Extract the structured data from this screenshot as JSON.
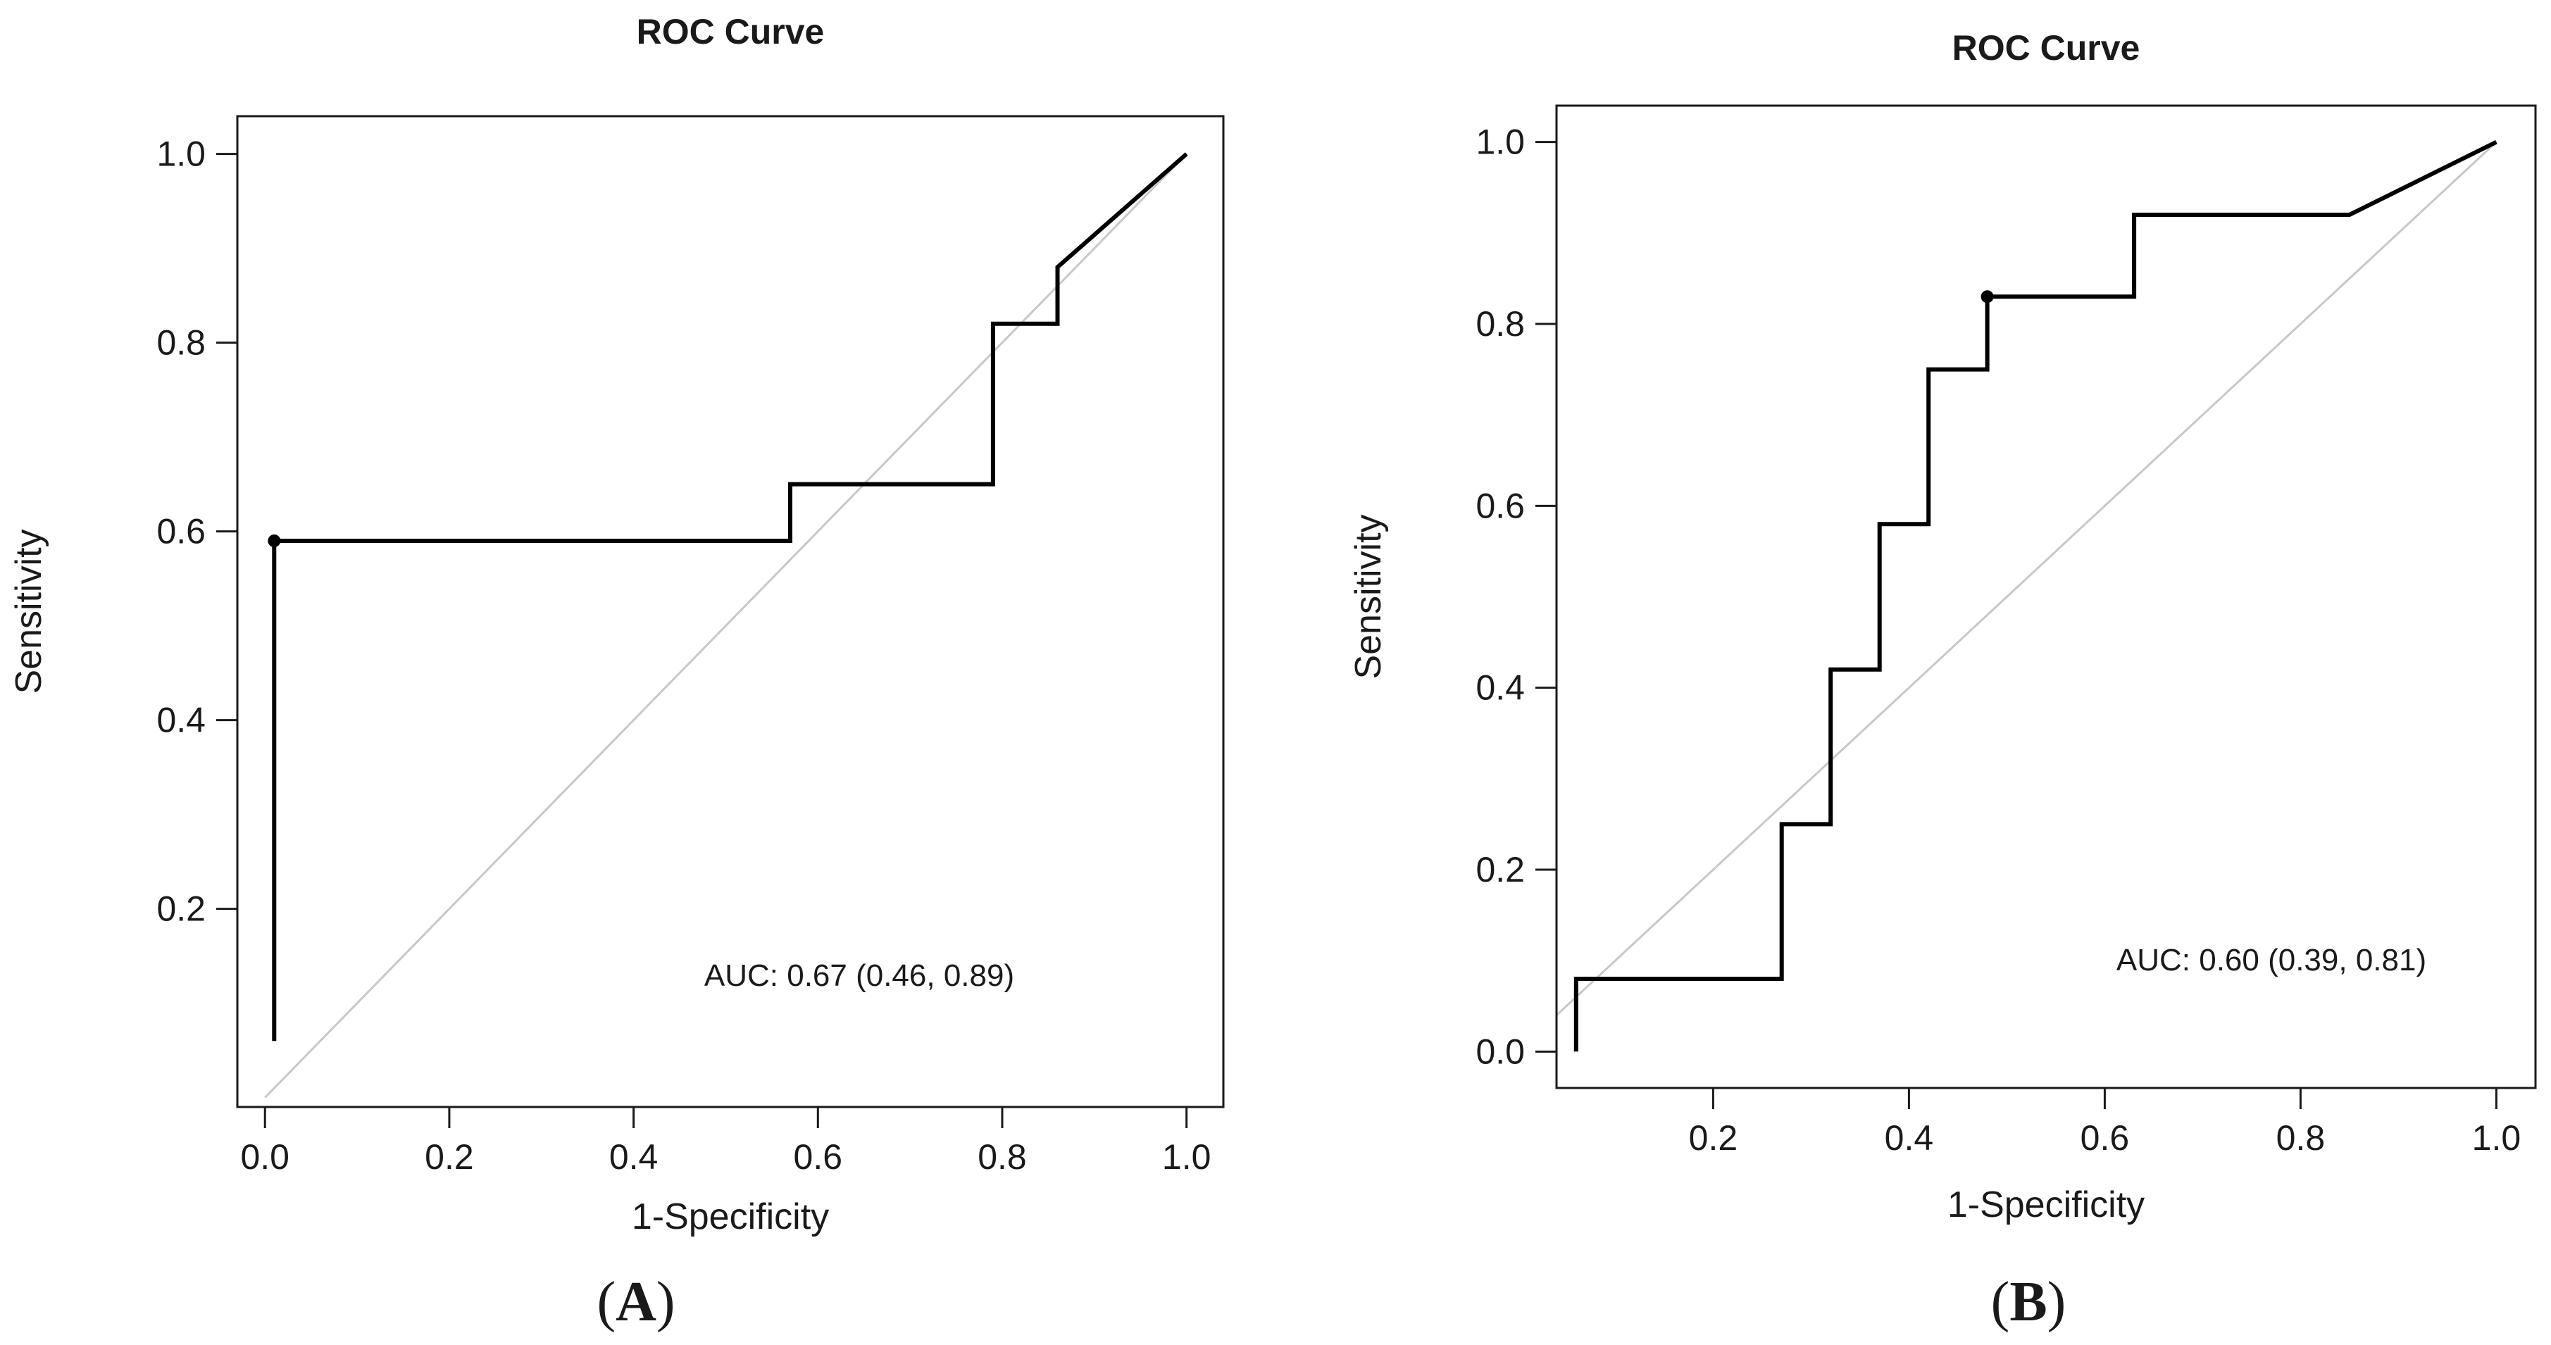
{
  "chart_data": [
    {
      "type": "line",
      "panel_label": "(A)",
      "panel_letter": "A",
      "title": "ROC Curve",
      "xlabel": "1-Specificity",
      "ylabel": "Sensitivity",
      "xlim": [
        -0.03,
        1.04
      ],
      "ylim": [
        -0.01,
        1.04
      ],
      "xticks": [
        0.0,
        0.2,
        0.4,
        0.6,
        0.8,
        1.0
      ],
      "xtick_labels": [
        "0.0",
        "0.2",
        "0.4",
        "0.6",
        "0.8",
        "1.0"
      ],
      "yticks": [
        0.2,
        0.4,
        0.6,
        0.8,
        1.0
      ],
      "ytick_labels": [
        "0.2",
        "0.4",
        "0.6",
        "0.8",
        "1.0"
      ],
      "series": [
        {
          "name": "ROC",
          "color": "#000000",
          "x": [
            0.01,
            0.01,
            0.57,
            0.57,
            0.79,
            0.79,
            0.86,
            0.86,
            1.0
          ],
          "y": [
            0.06,
            0.59,
            0.59,
            0.65,
            0.65,
            0.82,
            0.82,
            0.88,
            1.0
          ]
        }
      ],
      "reference_line": {
        "x": [
          0,
          1
        ],
        "y": [
          0,
          1
        ],
        "color": "#c8c8c8"
      },
      "optimal_point": {
        "x": 0.01,
        "y": 0.59
      },
      "annotation": "AUC: 0.67 (0.46, 0.89)"
    },
    {
      "type": "line",
      "panel_label": "(B)",
      "panel_letter": "B",
      "title": "ROC Curve",
      "xlabel": "1-Specificity",
      "ylabel": "Sensitivity",
      "xlim": [
        0.04,
        1.04
      ],
      "ylim": [
        -0.04,
        1.04
      ],
      "xticks": [
        0.2,
        0.4,
        0.6,
        0.8,
        1.0
      ],
      "xtick_labels": [
        "0.2",
        "0.4",
        "0.6",
        "0.8",
        "1.0"
      ],
      "yticks": [
        0.0,
        0.2,
        0.4,
        0.6,
        0.8,
        1.0
      ],
      "ytick_labels": [
        "0.0",
        "0.2",
        "0.4",
        "0.6",
        "0.8",
        "1.0"
      ],
      "series": [
        {
          "name": "ROC",
          "color": "#000000",
          "x": [
            0.06,
            0.06,
            0.27,
            0.27,
            0.32,
            0.32,
            0.37,
            0.37,
            0.42,
            0.42,
            0.48,
            0.48,
            0.63,
            0.63,
            0.85,
            1.0
          ],
          "y": [
            0.0,
            0.08,
            0.08,
            0.25,
            0.25,
            0.42,
            0.42,
            0.58,
            0.58,
            0.75,
            0.75,
            0.83,
            0.83,
            0.92,
            0.92,
            1.0
          ]
        }
      ],
      "reference_line": {
        "x": [
          0,
          1
        ],
        "y": [
          0,
          1
        ],
        "color": "#c8c8c8"
      },
      "optimal_point": {
        "x": 0.48,
        "y": 0.83
      },
      "annotation": "AUC: 0.60 (0.39, 0.81)"
    }
  ]
}
